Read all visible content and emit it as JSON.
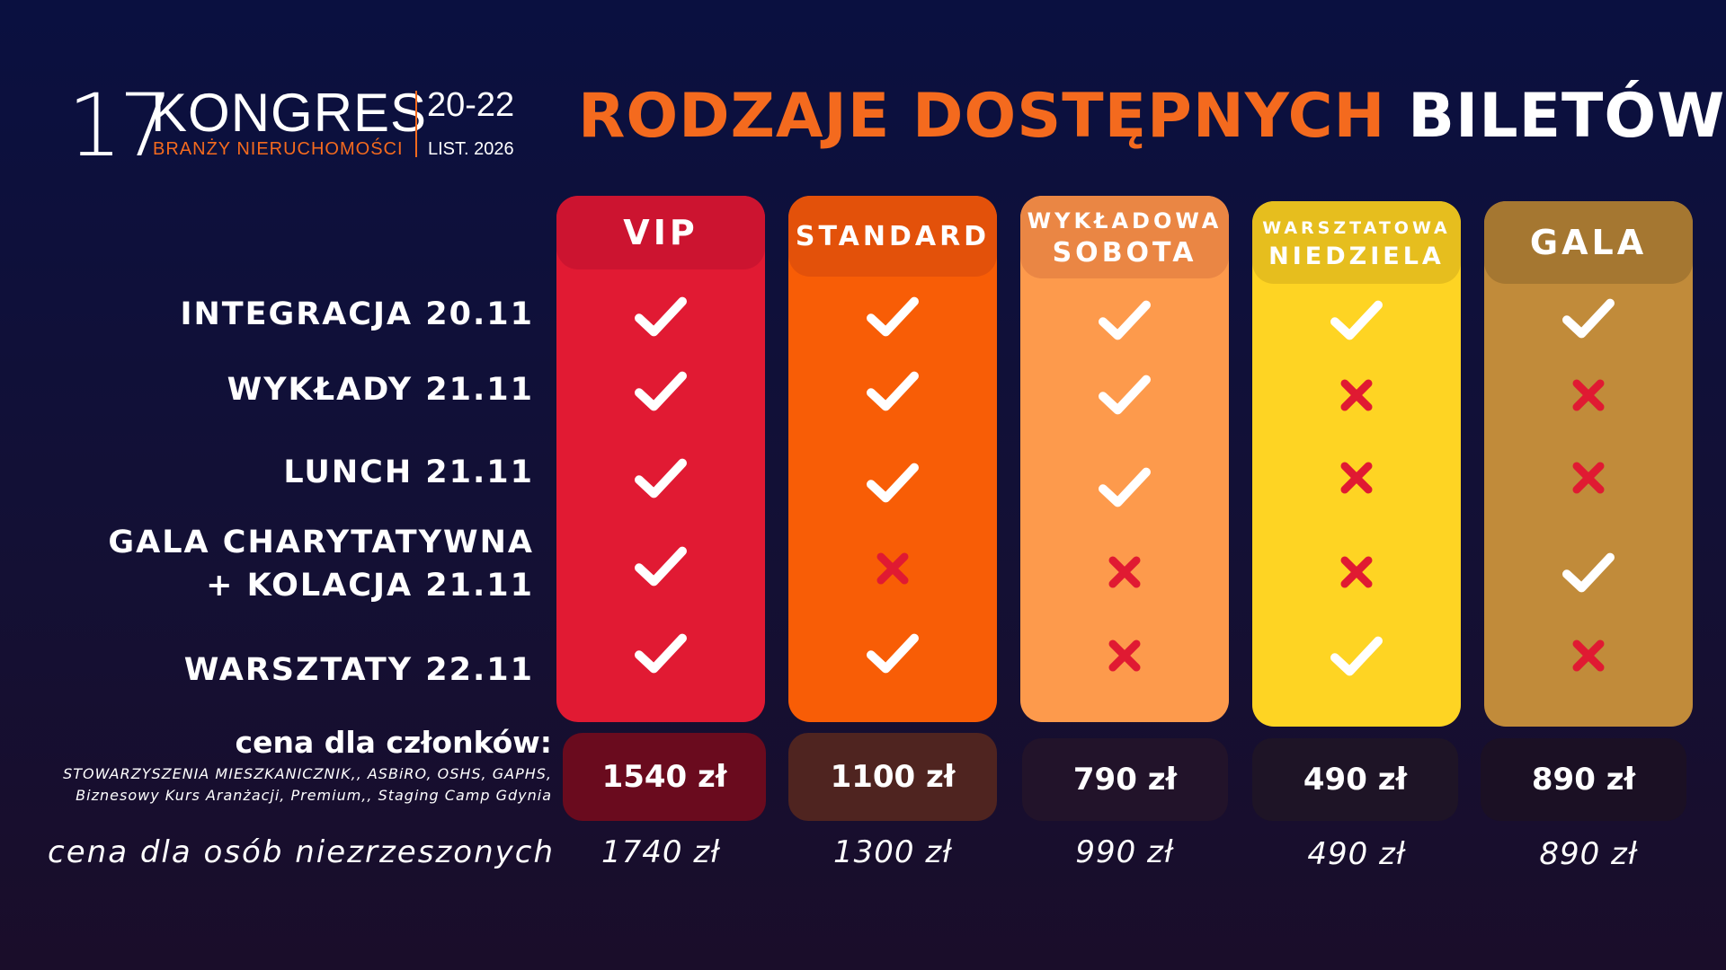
{
  "logo": {
    "number": "17",
    "word": "KONGRES",
    "subtitle": "BRANŻY NIERUCHOMOŚCI",
    "dates": "20-22",
    "month": "LIST. 2026"
  },
  "title": {
    "orange": "RODZAJE DOSTĘPNYCH",
    "white": "BILETÓW"
  },
  "rows": [
    {
      "label": "INTEGRACJA 20.11"
    },
    {
      "label": "WYKŁADY 21.11"
    },
    {
      "label": "LUNCH 21.11"
    },
    {
      "label_line1": "GALA CHARYTATYWNA",
      "label_line2": "+ KOLACJA 21.11"
    },
    {
      "label": "WARSZTATY 22.11"
    }
  ],
  "columns": [
    {
      "name": "VIP",
      "color": "#e11a33",
      "head_color": "#cc1430",
      "marks": [
        "check",
        "check",
        "check",
        "check",
        "check"
      ],
      "price_member": "1540 zł",
      "price_other": "1740 zł"
    },
    {
      "name": "STANDARD",
      "color": "#f85d06",
      "head_color": "#e3510a",
      "marks": [
        "check",
        "check",
        "check",
        "cross",
        "check"
      ],
      "price_member": "1100 zł",
      "price_other": "1300 zł"
    },
    {
      "name_line1": "WYKŁADOWA",
      "name_line2": "SOBOTA",
      "color": "#fd9a4c",
      "head_color": "#ea8644",
      "marks": [
        "check",
        "check",
        "check",
        "cross",
        "cross"
      ],
      "price_member": "790 zł",
      "price_other": "990 zł"
    },
    {
      "name_line1": "WARSZTATOWA",
      "name_line2": "NIEDZIELA",
      "color": "#fed423",
      "head_color": "#e6be1e",
      "marks": [
        "check",
        "cross",
        "cross",
        "cross",
        "check"
      ],
      "price_member": "490 zł",
      "price_other": "490 zł"
    },
    {
      "name": "GALA",
      "color": "#c18b3a",
      "head_color": "#a57731",
      "marks": [
        "check",
        "cross",
        "cross",
        "check",
        "cross"
      ],
      "price_member": "890 zł",
      "price_other": "890 zł"
    }
  ],
  "prices": {
    "member_label": "cena dla członków:",
    "member_note_line1": "STOWARZYSZENIA MIESZKANICZNIK,, ASBiRO, OSHS, GAPHS,",
    "member_note_line2": "Biznesowy Kurs Aranżacji, Premium,, Staging Camp Gdynia",
    "nonmember_label": "cena dla osób niezrzeszonych",
    "member_box_colors": [
      "#6a0b1e",
      "#4f2420",
      "#22132a",
      "#1e1426",
      "#1b1024"
    ]
  },
  "colors": {
    "check": "#ffffff",
    "cross": "#e01a32",
    "accent": "#f46a1e"
  }
}
